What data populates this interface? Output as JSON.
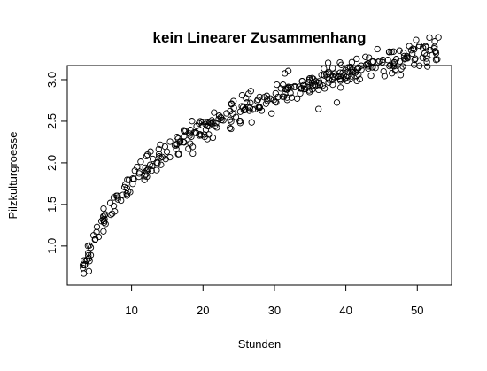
{
  "chart_data": {
    "type": "scatter",
    "title": "kein Linearer Zusammenhang",
    "xlabel": "Stunden",
    "ylabel": "Pilzkulturgroesse",
    "xlim": [
      1.0,
      54.8
    ],
    "ylim": [
      0.53,
      3.17
    ],
    "x_ticks": [
      10,
      20,
      30,
      40,
      50
    ],
    "y_ticks": [
      "1.0",
      "1.5",
      "2.0",
      "2.5",
      "3.0"
    ],
    "grid": false,
    "marker": "open-circle",
    "point_color": "#000000",
    "model": {
      "form": "y = 0.94 * ln(x) - 0.39 + noise",
      "x_range": [
        3,
        53
      ],
      "n_points": 400,
      "noise_sd": 0.08
    }
  }
}
